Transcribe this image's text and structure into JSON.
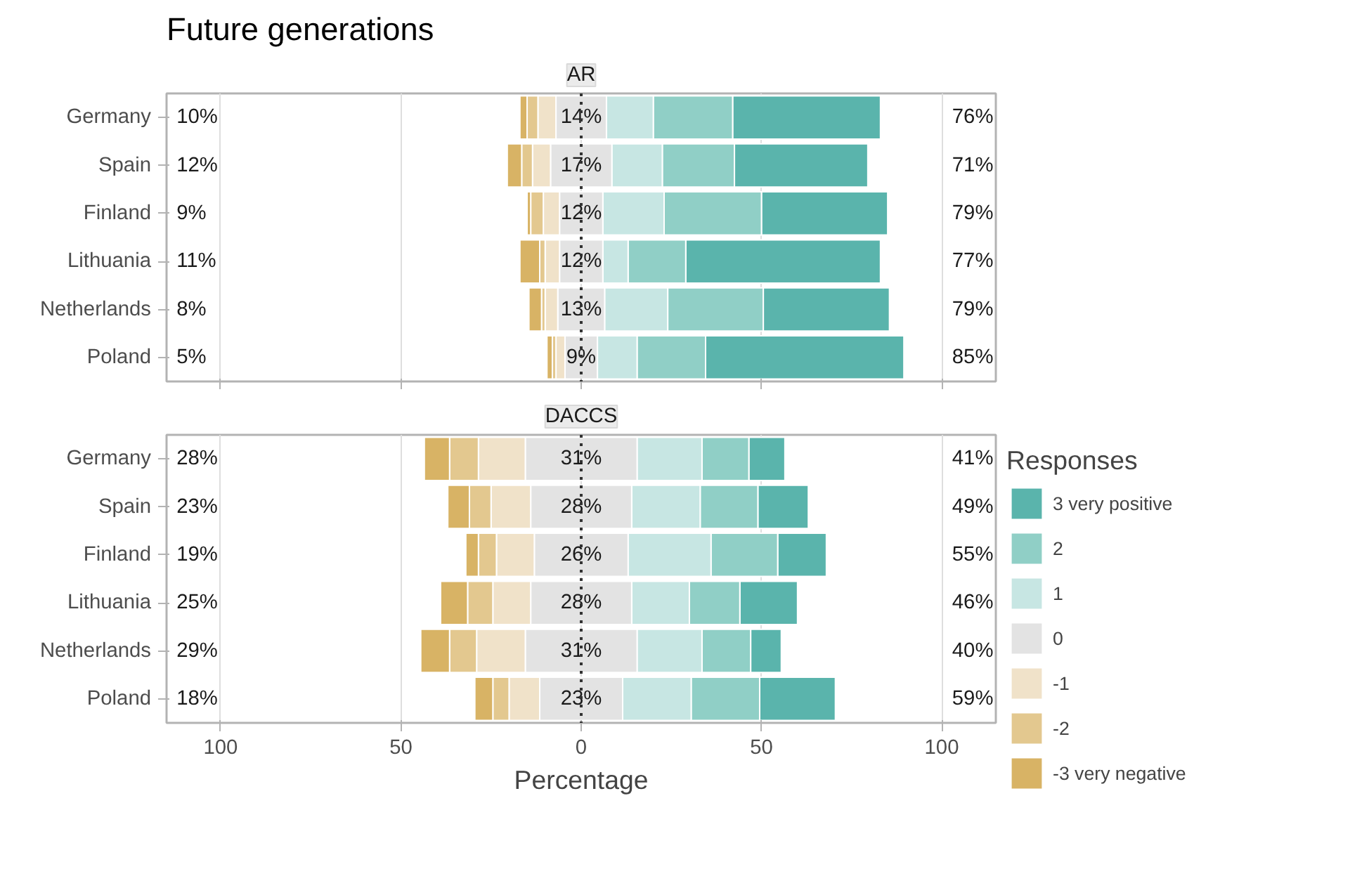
{
  "chart_data": [
    {
      "type": "bar",
      "orientation": "horizontal",
      "title": "Future generations",
      "subtitle": "AR",
      "categories": [
        "Germany",
        "Spain",
        "Finland",
        "Lithuania",
        "Netherlands",
        "Poland"
      ],
      "xlim": [
        -115,
        115
      ],
      "tick_labels": "y",
      "grid": "x",
      "series": [
        {
          "color": "#5ab4ac",
          "values": [
            41,
            37,
            35,
            54,
            35,
            55
          ],
          "base": [
            42,
            42.5,
            50,
            29,
            50.5,
            34.5
          ]
        },
        {
          "color": "#90cfc6",
          "values": [
            22,
            20,
            27,
            16,
            26.5,
            19
          ],
          "base": [
            20,
            22.5,
            23,
            13,
            24,
            15.5
          ]
        },
        {
          "color": "#c7e6e3",
          "values": [
            13,
            14,
            17,
            7,
            17.5,
            11
          ],
          "base": [
            7,
            8.5,
            6,
            6,
            6.5,
            4.5
          ]
        },
        {
          "color": "#e3e3e3",
          "values": [
            14,
            17,
            12,
            12,
            13,
            9
          ],
          "base": [
            -7,
            -8.5,
            -6,
            -6,
            -6.5,
            -4.5
          ]
        },
        {
          "color": "#f0e2c9",
          "values": [
            5,
            5,
            4.5,
            4,
            3.5,
            2.5
          ],
          "base": [
            -12,
            -13.5,
            -10.5,
            -10,
            -10,
            -7
          ]
        },
        {
          "color": "#e3c88f",
          "values": [
            3,
            3,
            3.5,
            1.5,
            1,
            1
          ],
          "base": [
            -15,
            -16.5,
            -14,
            -11.5,
            -11,
            -8
          ]
        },
        {
          "color": "#d8b365",
          "values": [
            2,
            4,
            1,
            5.5,
            3.5,
            1.5
          ],
          "base": [
            -17,
            -20.5,
            -15,
            -17,
            -14.5,
            -9.5
          ]
        }
      ],
      "ref_lines": [
        {
          "axis": "x",
          "value": 0,
          "color": "#333333",
          "line_style": "dotted"
        }
      ],
      "annotations": [
        "10%",
        "12%",
        "9%",
        "11%",
        "8%",
        "5%",
        "76%",
        "71%",
        "79%",
        "77%",
        "79%",
        "85%",
        "14%",
        "17%",
        "12%",
        "12%",
        "13%",
        "9%"
      ]
    },
    {
      "type": "bar",
      "orientation": "horizontal",
      "title": "DACCS",
      "xlabel": "Percentage",
      "legend_title": "Responses",
      "legend": "right",
      "categories": [
        "Germany",
        "Spain",
        "Finland",
        "Lithuania",
        "Netherlands",
        "Poland"
      ],
      "xlim": [
        -115,
        115
      ],
      "xticks": [
        {
          "value": -100,
          "label": "100"
        },
        {
          "value": -50,
          "label": "50"
        },
        0,
        50,
        100
      ],
      "grid": "x",
      "series": [
        {
          "name": "3 very positive",
          "color": "#5ab4ac",
          "values": [
            10,
            14,
            13.5,
            16,
            8.5,
            21
          ],
          "base": [
            46.5,
            49,
            54.5,
            44,
            47,
            49.5
          ]
        },
        {
          "name": "2",
          "color": "#90cfc6",
          "values": [
            13,
            16,
            18.5,
            14,
            13.5,
            19
          ],
          "base": [
            33.5,
            33,
            36,
            30,
            33.5,
            30.5
          ]
        },
        {
          "name": "1",
          "color": "#c7e6e3",
          "values": [
            18,
            19,
            23,
            16,
            18,
            19
          ],
          "base": [
            15.5,
            14,
            13,
            14,
            15.5,
            11.5
          ]
        },
        {
          "name": "0",
          "color": "#e3e3e3",
          "values": [
            31,
            28,
            26,
            28,
            31,
            23
          ],
          "base": [
            -15.5,
            -14,
            -13,
            -14,
            -15.5,
            -11.5
          ]
        },
        {
          "name": "-1",
          "color": "#f0e2c9",
          "values": [
            13,
            11,
            10.5,
            10.5,
            13.5,
            8.5
          ],
          "base": [
            -28.5,
            -25,
            -23.5,
            -24.5,
            -29,
            -20
          ]
        },
        {
          "name": "-2",
          "color": "#e3c88f",
          "values": [
            8,
            6,
            5,
            7,
            7.5,
            4.5
          ],
          "base": [
            -36.5,
            -31,
            -28.5,
            -31.5,
            -36.5,
            -24.5
          ]
        },
        {
          "name": "-3 very negative",
          "color": "#d8b365",
          "values": [
            7,
            6,
            3.5,
            7.5,
            8,
            5
          ],
          "base": [
            -43.5,
            -37,
            -32,
            -39,
            -44.5,
            -29.5
          ]
        }
      ],
      "ref_lines": [
        {
          "axis": "x",
          "value": 0,
          "color": "#333333",
          "line_style": "dotted"
        }
      ],
      "annotations": [
        "28%",
        "23%",
        "19%",
        "25%",
        "29%",
        "18%",
        "41%",
        "49%",
        "55%",
        "46%",
        "40%",
        "59%",
        "31%",
        "28%",
        "26%",
        "28%",
        "31%",
        "23%"
      ]
    }
  ]
}
